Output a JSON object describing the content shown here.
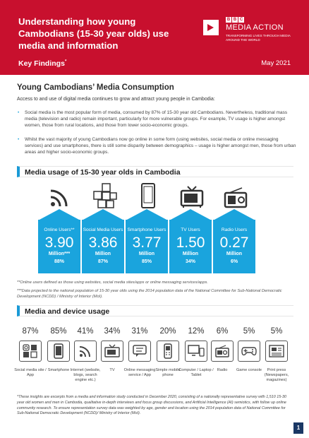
{
  "header": {
    "title": "Understanding how young Cambodians (15-30 year olds) use media and information",
    "key_findings": "Key Findings",
    "key_findings_mark": "*",
    "date": "May 2021",
    "logo": {
      "bbc": [
        "B",
        "B",
        "C"
      ],
      "name": "MEDIA ACTION",
      "tagline": "TRANSFORMING LIVES THROUGH MEDIA AROUND THE WORLD"
    }
  },
  "section": {
    "title": "Young Cambodians’ Media Consumption",
    "intro": "Access to and use of digital media continues to grow and attract young people in Cambodia:",
    "bullets": [
      "Social media is the most popular form of media, consumed by 87% of 15-30 year old Cambodians. Nevertheless, traditional mass media (television and radio) remain important, particularly for more vulnerable groups. For example, TV usage is higher amongst women, those from rural locations, and those from lower socio-economic groups.",
      "Whilst the vast majority of young Cambodians now go online in some form (using websites, social media or online messaging services) and use smartphones, there is still some disparity between demographics – usage is higher amongst men, those from urban areas and higher socio-economic groups."
    ]
  },
  "media_usage": {
    "title": "Media usage of 15-30 year olds in Cambodia",
    "items": [
      {
        "label": "Online Users**",
        "value": "3.90",
        "unit": "Million***",
        "pct": "88%",
        "icon": "wifi-icon"
      },
      {
        "label": "Social Media Users",
        "value": "3.86",
        "unit": "Million",
        "pct": "87%",
        "icon": "social-media-icon"
      },
      {
        "label": "Smartphone Users",
        "value": "3.77",
        "unit": "Million",
        "pct": "85%",
        "icon": "smartphone-icon"
      },
      {
        "label": "TV Users",
        "value": "1.50",
        "unit": "Million",
        "pct": "34%",
        "icon": "tv-icon"
      },
      {
        "label": "Radio Users",
        "value": "0.27",
        "unit": "Million",
        "pct": "6%",
        "icon": "radio-icon"
      }
    ],
    "accent": "#1aa4dd",
    "note1": "**Online users defined as those using websites, social media sites/apps or online messaging services/apps.",
    "note2": "***Data projected to the national population of 15-30 year olds using the 2014 population data of the National Committee for Sub-National Democratic Development (NCDD) / Ministry of Interior (MoI)."
  },
  "device_usage": {
    "title": "Media and device usage",
    "items": [
      {
        "pct": "87%",
        "label": "Social media site / App",
        "icon": "social-media-icon"
      },
      {
        "pct": "85%",
        "label": "Smartphone",
        "icon": "smartphone-icon"
      },
      {
        "pct": "41%",
        "label": "Internet (website, blogs, search engine etc.)",
        "icon": "wifi-icon"
      },
      {
        "pct": "34%",
        "label": "TV",
        "icon": "tv-icon"
      },
      {
        "pct": "31%",
        "label": "Online messaging service / App",
        "icon": "chat-icon"
      },
      {
        "pct": "20%",
        "label": "Simple mobile phone",
        "icon": "mobile-phone-icon"
      },
      {
        "pct": "12%",
        "label": "Computer / Laptop / Tablet",
        "icon": "computer-icon"
      },
      {
        "pct": "6%",
        "label": "Radio",
        "icon": "radio-icon"
      },
      {
        "pct": "5%",
        "label": "Game console",
        "icon": "gamepad-icon"
      },
      {
        "pct": "5%",
        "label": "Print press (Newspapers, magazines)",
        "icon": "newspaper-icon"
      }
    ]
  },
  "footnote": "*These insights are excerpts from a media and information study conducted in December 2020, consisting of a nationally representative survey with 1,510 15-30 year old women and men in Cambodia, qualitative in-depth interviews and focus group discussions, and Artificial Intelligence (AI) semiotics, with follow up online community research. To ensure representation survey data was weighted by age, gender and location using the 2014 population data of National Committee for Sub-National Democratic Development (NCDD)/ Ministry of Interior (MoI).",
  "page_number": "1"
}
